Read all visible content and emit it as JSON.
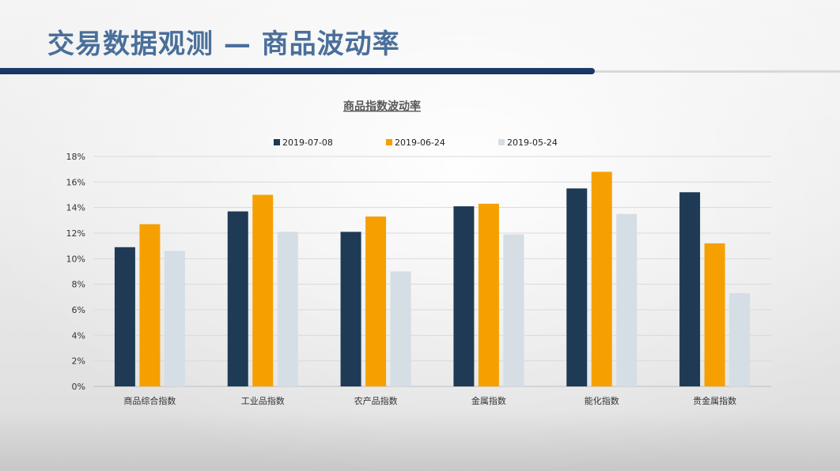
{
  "slide": {
    "title": "交易数据观测 — 商品波动率"
  },
  "colors": {
    "title": "#4a6f9a",
    "title_bar": "#1f3e6c",
    "series_1": "#1f3a55",
    "series_2": "#f5a000",
    "series_3": "#d5dde5"
  },
  "chart_data": {
    "type": "bar",
    "title": "商品指数波动率",
    "xlabel": "",
    "ylabel": "",
    "categories": [
      "商品综合指数",
      "工业品指数",
      "农产品指数",
      "金属指数",
      "能化指数",
      "贵金属指数"
    ],
    "series": [
      {
        "name": "2019-07-08",
        "color": "#1f3a55",
        "values": [
          10.9,
          13.7,
          12.1,
          14.1,
          15.5,
          15.2
        ]
      },
      {
        "name": "2019-06-24",
        "color": "#f5a000",
        "values": [
          12.7,
          15.0,
          13.3,
          14.3,
          16.8,
          11.2
        ]
      },
      {
        "name": "2019-05-24",
        "color": "#d5dde5",
        "values": [
          10.6,
          12.1,
          9.0,
          11.9,
          13.5,
          7.3
        ]
      }
    ],
    "ylim": [
      0,
      18
    ],
    "yticks": [
      0,
      2,
      4,
      6,
      8,
      10,
      12,
      14,
      16,
      18
    ],
    "ytick_suffix": "%",
    "grid": true,
    "legend_position": "top-center"
  }
}
